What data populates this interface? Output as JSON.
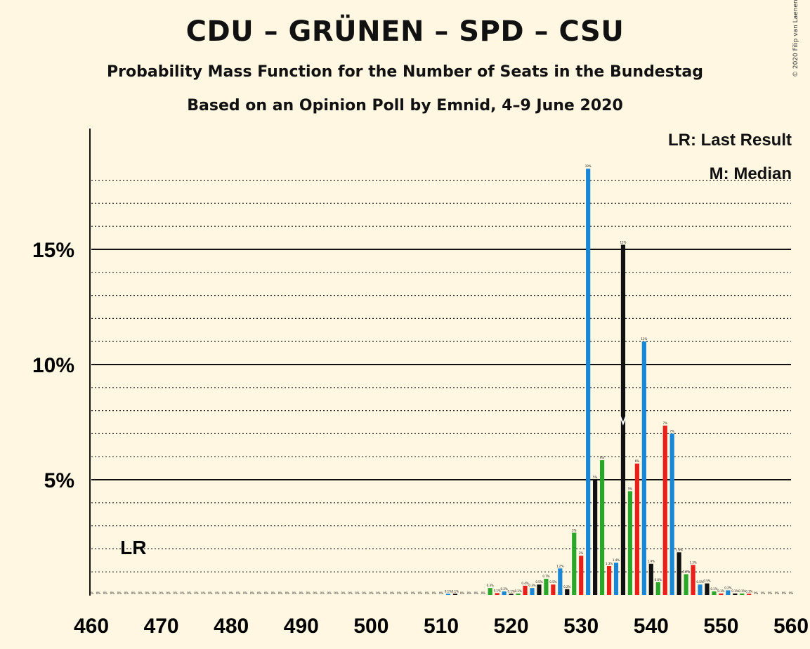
{
  "title": "CDU – GRÜNEN – SPD – CSU",
  "subtitle1": "Probability Mass Function for the Number of Seats in the Bundestag",
  "subtitle2": "Based on an Opinion Poll by Emnid, 4–9 June 2020",
  "copyright": "© 2020 Filip van Laenen",
  "legend": {
    "lr": "LR: Last Result",
    "m": "M: Median"
  },
  "lr_marker": "LR",
  "colors": {
    "background": "#fff7e1",
    "blue": "#1a87d6",
    "black": "#111111",
    "green": "#2aa62a",
    "red": "#e8201c"
  },
  "chart_data": {
    "type": "bar",
    "xlim": [
      460,
      560
    ],
    "ylim": [
      0,
      20
    ],
    "x_ticks": [
      460,
      470,
      480,
      490,
      500,
      510,
      520,
      530,
      540,
      550,
      560
    ],
    "y_ticks": [
      {
        "value": 5,
        "label": "5%"
      },
      {
        "value": 10,
        "label": "10%"
      },
      {
        "value": 15,
        "label": "15%"
      }
    ],
    "last_result": 466,
    "median": 536,
    "bars": [
      {
        "x": 511,
        "value": 0.05,
        "label": "0.1%"
      },
      {
        "x": 512,
        "value": 0.05,
        "label": "0.1%"
      },
      {
        "x": 517,
        "value": 0.3,
        "label": "0.3%"
      },
      {
        "x": 518,
        "value": 0.08,
        "label": "0.1%"
      },
      {
        "x": 519,
        "value": 0.15,
        "label": "0.2%"
      },
      {
        "x": 520,
        "value": 0.05,
        "label": "0.1%"
      },
      {
        "x": 521,
        "value": 0.06,
        "label": "0.1%"
      },
      {
        "x": 522,
        "value": 0.4,
        "label": "0.4%"
      },
      {
        "x": 523,
        "value": 0.3,
        "label": "0.3%"
      },
      {
        "x": 524,
        "value": 0.45,
        "label": "0.5%"
      },
      {
        "x": 525,
        "value": 0.7,
        "label": "0.7%"
      },
      {
        "x": 526,
        "value": 0.45,
        "label": "0.5%"
      },
      {
        "x": 527,
        "value": 1.15,
        "label": "1.2%"
      },
      {
        "x": 528,
        "value": 0.25,
        "label": "0.2%"
      },
      {
        "x": 529,
        "value": 2.7,
        "label": "3%"
      },
      {
        "x": 530,
        "value": 1.7,
        "label": "2%"
      },
      {
        "x": 531,
        "value": 18.5,
        "label": "19%"
      },
      {
        "x": 532,
        "value": 5.0,
        "label": "5%"
      },
      {
        "x": 533,
        "value": 5.85,
        "label": "6%"
      },
      {
        "x": 534,
        "value": 1.25,
        "label": "1.3%"
      },
      {
        "x": 535,
        "value": 1.4,
        "label": "1.4%"
      },
      {
        "x": 536,
        "value": 15.2,
        "label": "15%"
      },
      {
        "x": 537,
        "value": 4.5,
        "label": "5%"
      },
      {
        "x": 538,
        "value": 5.7,
        "label": "6%"
      },
      {
        "x": 539,
        "value": 11.0,
        "label": "11%"
      },
      {
        "x": 540,
        "value": 1.35,
        "label": "1.4%"
      },
      {
        "x": 541,
        "value": 0.55,
        "label": "0.6%"
      },
      {
        "x": 542,
        "value": 7.35,
        "label": "7%"
      },
      {
        "x": 543,
        "value": 7.0,
        "label": "7%"
      },
      {
        "x": 544,
        "value": 1.85,
        "label": "1.9%"
      },
      {
        "x": 545,
        "value": 0.9,
        "label": "0.9%"
      },
      {
        "x": 546,
        "value": 1.3,
        "label": "1.3%"
      },
      {
        "x": 547,
        "value": 0.45,
        "label": "0.5%"
      },
      {
        "x": 548,
        "value": 0.5,
        "label": "0.5%"
      },
      {
        "x": 549,
        "value": 0.15,
        "label": "0.1%"
      },
      {
        "x": 550,
        "value": 0.06,
        "label": "0.1%"
      },
      {
        "x": 551,
        "value": 0.2,
        "label": "0.2%"
      },
      {
        "x": 552,
        "value": 0.06,
        "label": "0.1%"
      },
      {
        "x": 553,
        "value": 0.06,
        "label": "0.1%"
      },
      {
        "x": 554,
        "value": 0.05,
        "label": "0.1%"
      }
    ],
    "zero_label": "0%"
  }
}
